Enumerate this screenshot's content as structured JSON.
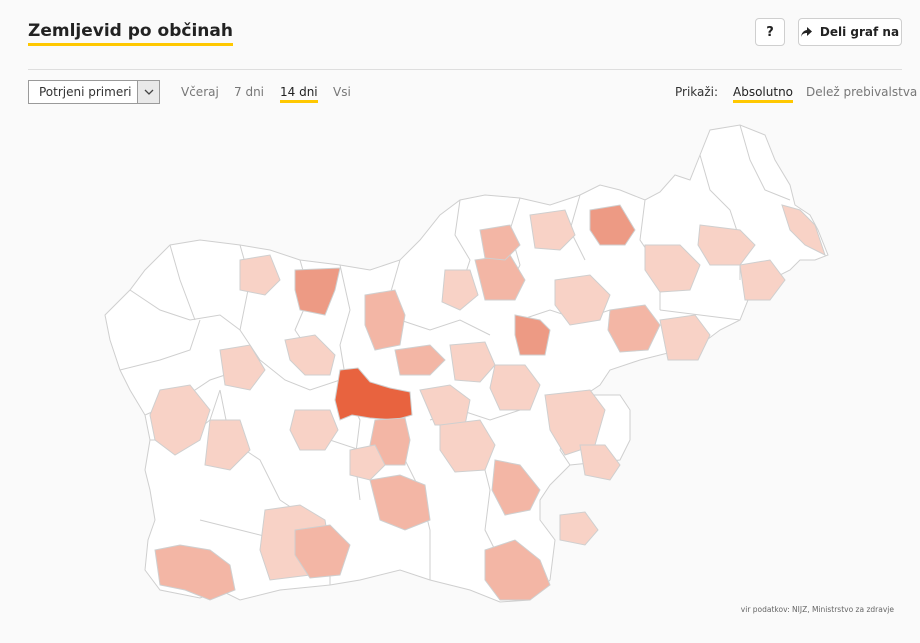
{
  "header": {
    "title": "Zemljevid po občinah",
    "help_label": "?",
    "share_label": "Deli graf na"
  },
  "controls": {
    "metric_select": {
      "value": "Potrjeni primeri"
    },
    "periods": [
      {
        "label": "Včeraj",
        "active": false
      },
      {
        "label": "7 dni",
        "active": false
      },
      {
        "label": "14 dni",
        "active": true
      },
      {
        "label": "Vsi",
        "active": false
      }
    ],
    "show_label": "Prikaži:",
    "modes": [
      {
        "label": "Absolutno",
        "active": true
      },
      {
        "label": "Delež prebivalstva",
        "active": false
      }
    ]
  },
  "map": {
    "colors": {
      "none": "#ffffff",
      "low": "#f8d2c6",
      "mid": "#f3b6a5",
      "high": "#ed9a84",
      "very_high": "#e8633f"
    }
  },
  "footer": {
    "source": "vir podatkov: NIJZ, Ministrstvo za zdravje"
  }
}
